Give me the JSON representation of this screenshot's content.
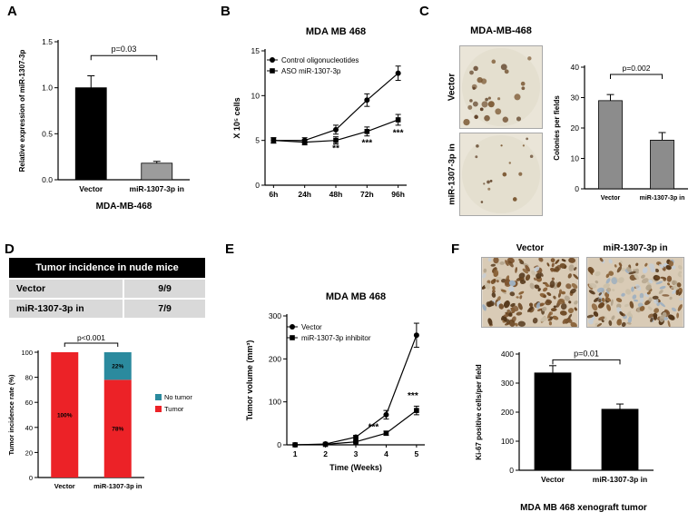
{
  "panels": {
    "A": {
      "letter": "A"
    },
    "B": {
      "letter": "B"
    },
    "C": {
      "letter": "C",
      "images_title": "MDA-MB-468",
      "image_labels": [
        "Vector",
        "miR-1307-3p in"
      ]
    },
    "D": {
      "letter": "D",
      "table": {
        "header": "Tumor incidence in nude mice",
        "rows": [
          {
            "label": "Vector",
            "value": "9/9"
          },
          {
            "label": "miR-1307-3p in",
            "value": "7/9"
          }
        ]
      }
    },
    "E": {
      "letter": "E"
    },
    "F": {
      "letter": "F",
      "image_labels": [
        "Vector",
        "miR-1307-3p in"
      ],
      "caption": "MDA MB 468 xenograft tumor"
    }
  },
  "chart_data": [
    {
      "id": "A",
      "type": "bar",
      "ylabel": "Relative expression of miR-1307-3p",
      "xlabel": "MDA-MB-468",
      "categories": [
        "Vector",
        "miR-1307-3p in"
      ],
      "values": [
        1.0,
        0.18
      ],
      "errors": [
        0.13,
        0.02
      ],
      "bar_colors": [
        "#000000",
        "#9c9c9c"
      ],
      "ylim": [
        0,
        1.5
      ],
      "yticks": [
        0,
        0.5,
        1,
        1.5
      ],
      "ytick_decimals": 1,
      "significance": "p=0.03"
    },
    {
      "id": "B",
      "type": "line",
      "title": "MDA MB 468",
      "ylabel": "X 10⁵ cells",
      "categories": [
        "6h",
        "24h",
        "48h",
        "72h",
        "96h"
      ],
      "ylim": [
        0,
        15
      ],
      "yticks": [
        0,
        5,
        10,
        15
      ],
      "series": [
        {
          "name": "Control oligonucleotides",
          "marker": "circle",
          "values": [
            5,
            5,
            6.2,
            9.5,
            12.5
          ],
          "errors": [
            0.3,
            0.3,
            0.5,
            0.7,
            0.8
          ]
        },
        {
          "name": "ASO miR-1307-3p",
          "marker": "square",
          "values": [
            5,
            4.8,
            5,
            6,
            7.3
          ],
          "errors": [
            0.3,
            0.3,
            0.4,
            0.5,
            0.6
          ]
        }
      ],
      "annotations": [
        {
          "xi": 2,
          "y": 3.8,
          "text": "**"
        },
        {
          "xi": 3,
          "y": 4.4,
          "text": "***"
        },
        {
          "xi": 4,
          "y": 5.5,
          "text": "***"
        }
      ]
    },
    {
      "id": "C",
      "type": "bar",
      "ylabel": "Colonies per fields",
      "categories": [
        "Vector",
        "miR-1307-3p in"
      ],
      "values": [
        29,
        16
      ],
      "errors": [
        2,
        2.5
      ],
      "bar_colors": [
        "#8c8c8c",
        "#8c8c8c"
      ],
      "ylim": [
        0,
        40
      ],
      "yticks": [
        0,
        10,
        20,
        30,
        40
      ],
      "ytick_decimals": 0,
      "significance": "p=0.002"
    },
    {
      "id": "D",
      "type": "stacked_bar",
      "ylabel": "Tumor incidence rate (%)",
      "categories": [
        "Vector",
        "miR-1307-3p in"
      ],
      "series": [
        {
          "name": "Tumor",
          "color": "#ec2227",
          "values": [
            100,
            78
          ],
          "labels": [
            "100%",
            "78%"
          ]
        },
        {
          "name": "No tumor",
          "color": "#2b8a9e",
          "values": [
            0,
            22
          ],
          "labels": [
            "",
            "22%"
          ]
        }
      ],
      "legend": [
        "No tumor",
        "Tumor"
      ],
      "ylim": [
        0,
        100
      ],
      "yticks": [
        0,
        20,
        40,
        60,
        80,
        100
      ],
      "ytick_decimals": 0,
      "significance": "p<0.001"
    },
    {
      "id": "E",
      "type": "line",
      "title": "MDA MB 468",
      "ylabel": "Tumor volume (mm³)",
      "xlabel": "Time (Weeks)",
      "categories": [
        "1",
        "2",
        "3",
        "4",
        "5"
      ],
      "ylim": [
        0,
        300
      ],
      "yticks": [
        0,
        100,
        200,
        300
      ],
      "series": [
        {
          "name": "Vector",
          "marker": "circle",
          "values": [
            0,
            2,
            18,
            70,
            255
          ],
          "errors": [
            0,
            1,
            4,
            10,
            28
          ]
        },
        {
          "name": "miR-1307-3p inhibitor",
          "marker": "square",
          "values": [
            0,
            1,
            7,
            27,
            80
          ],
          "errors": [
            0,
            1,
            2,
            5,
            10
          ]
        }
      ],
      "annotations": [
        {
          "xi": 3,
          "y": 35,
          "text": "***",
          "dx": -14
        },
        {
          "xi": 4,
          "y": 108,
          "text": "***",
          "dx": -4
        }
      ]
    },
    {
      "id": "F",
      "type": "bar",
      "ylabel": "Ki-67 positive cells/per field",
      "categories": [
        "Vector",
        "miR-1307-3p in"
      ],
      "values": [
        335,
        210
      ],
      "errors": [
        25,
        18
      ],
      "bar_colors": [
        "#000000",
        "#000000"
      ],
      "ylim": [
        0,
        400
      ],
      "yticks": [
        0,
        100,
        200,
        300,
        400
      ],
      "ytick_decimals": 0,
      "significance": "p=0.01"
    }
  ]
}
